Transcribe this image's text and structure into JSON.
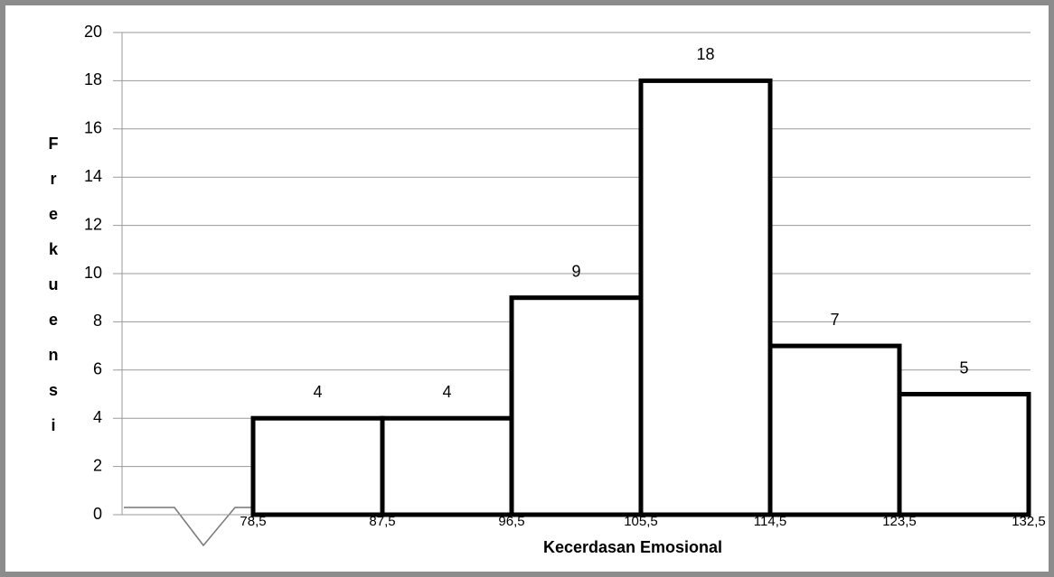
{
  "chart_data": {
    "type": "histogram",
    "xlabel": "Kecerdasan Emosional",
    "ylabel": "Frekuensi",
    "bins": [
      78.5,
      87.5,
      96.5,
      105.5,
      114.5,
      123.5,
      132.5
    ],
    "counts": [
      4,
      4,
      9,
      18,
      7,
      5
    ],
    "xlim": [
      69.5,
      132.5
    ],
    "xticks": [
      {
        "value": 78.5,
        "label": "78,5"
      },
      {
        "value": 87.5,
        "label": "87,5"
      },
      {
        "value": 96.5,
        "label": "96,5"
      },
      {
        "value": 105.5,
        "label": "105,5"
      },
      {
        "value": 114.5,
        "label": "114,5"
      },
      {
        "value": 123.5,
        "label": "123,5"
      },
      {
        "value": 132.5,
        "label": "132,5"
      }
    ],
    "ylim": [
      0,
      20
    ],
    "yticks": [
      0,
      2,
      4,
      6,
      8,
      10,
      12,
      14,
      16,
      18,
      20
    ],
    "grid": true,
    "color": "#ffffff",
    "edgecolor": "#000000"
  }
}
